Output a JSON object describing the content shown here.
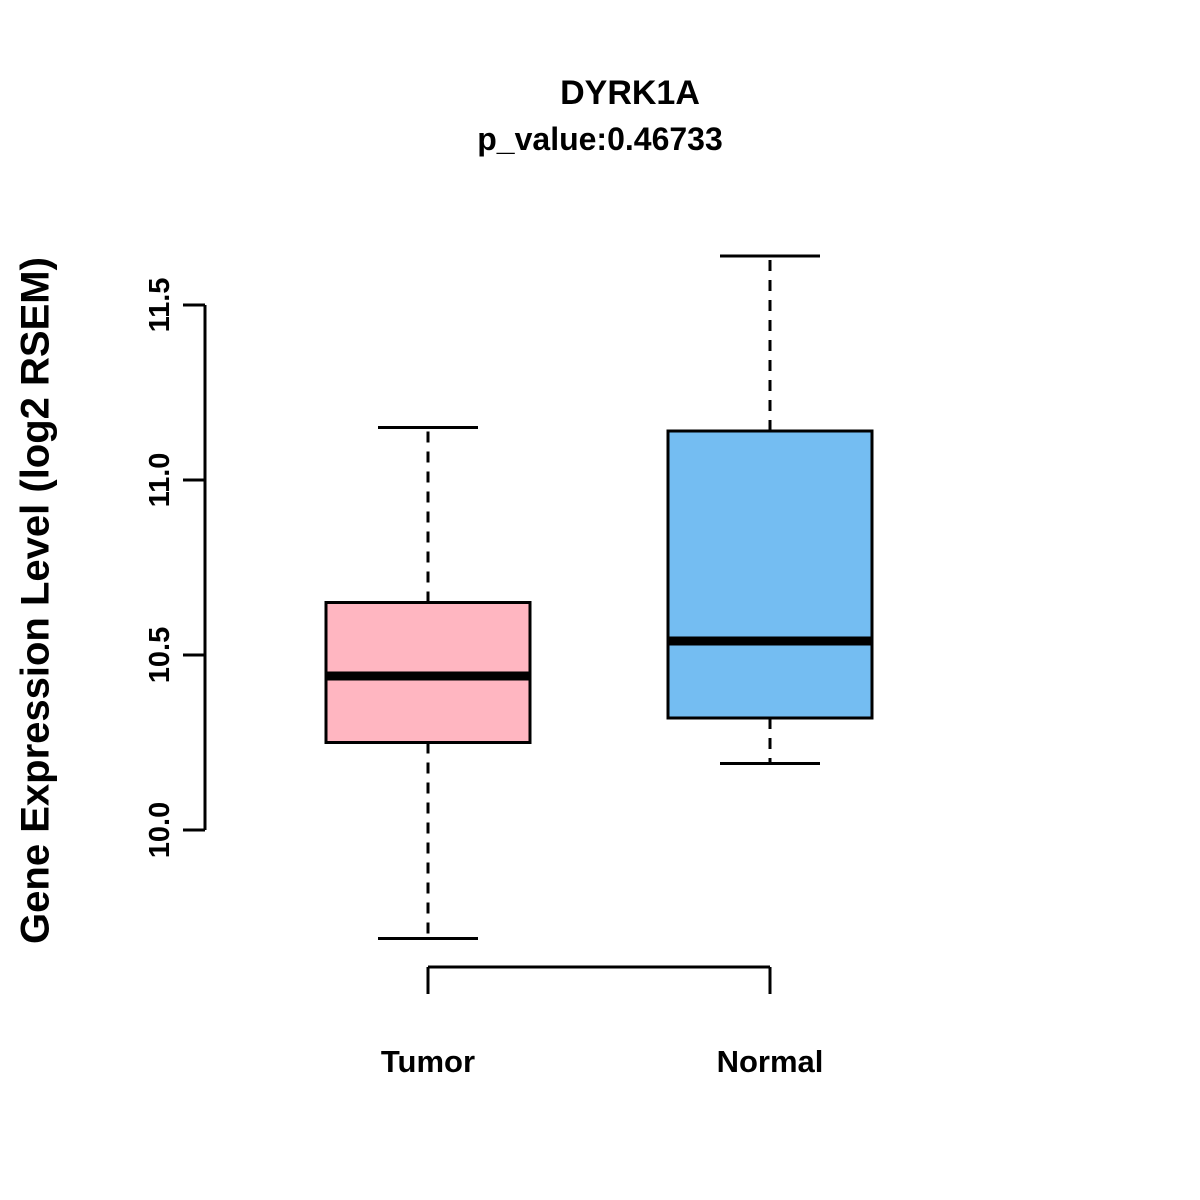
{
  "page": {
    "background": "#FFFFFF"
  },
  "chart_data": {
    "type": "boxplot",
    "title": "DYRK1A",
    "subtitle": "p_value:0.46733",
    "ylabel": "Gene Expression Level (log2 RSEM)",
    "xlabel": "",
    "grid": false,
    "legend_position": "none",
    "categories": [
      "Tumor",
      "Normal"
    ],
    "y_axis": {
      "ticks": [
        10.0,
        10.5,
        11.0,
        11.5
      ],
      "tick_labels": [
        "10.0",
        "10.5",
        "11.0",
        "11.5"
      ],
      "range": [
        10.0,
        11.5
      ]
    },
    "boxes": [
      {
        "label": "Tumor",
        "color": "#FFB6C1",
        "whisker_low": 9.69,
        "q1": 10.25,
        "median": 10.44,
        "q3": 10.65,
        "whisker_high": 11.15
      },
      {
        "label": "Normal",
        "color": "#74BDF2",
        "whisker_low": 10.19,
        "q1": 10.32,
        "median": 10.54,
        "q3": 11.14,
        "whisker_high": 11.64
      }
    ]
  }
}
